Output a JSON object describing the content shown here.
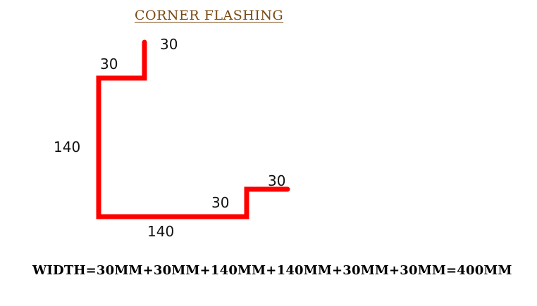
{
  "title": "CORNER  FLASHING",
  "dimensions": {
    "top_lip": "30",
    "top_return": "30",
    "left_side": "140",
    "bottom_side": "140",
    "bottom_step": "30",
    "bottom_lip": "30"
  },
  "formula": "WIDTH=30MM+30MM+140MM+140MM+30MM+30MM=400MM",
  "colors": {
    "profile_line": "#ff0000",
    "title": "#7a4a12",
    "text": "#000000"
  }
}
